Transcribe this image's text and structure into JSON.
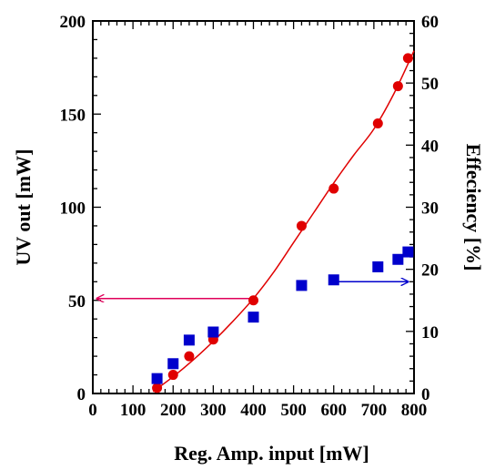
{
  "chart_data": {
    "type": "scatter",
    "title": "",
    "xlabel": "Reg. Amp. input [mW]",
    "ylabel": "UV out [mW]",
    "y2label": "Effeciency [%]",
    "xlim": [
      0,
      800
    ],
    "ylim": [
      0,
      200
    ],
    "y2lim": [
      0,
      60
    ],
    "xticks": [
      0,
      100,
      200,
      300,
      400,
      500,
      600,
      700,
      800
    ],
    "xtick_labels": [
      "0",
      "100",
      "200",
      "300",
      "400",
      "500",
      "600",
      "700",
      "800"
    ],
    "yticks": [
      0,
      50,
      100,
      150,
      200
    ],
    "ytick_labels": [
      "0",
      "50",
      "100",
      "150",
      "200"
    ],
    "y2ticks": [
      0,
      10,
      20,
      30,
      40,
      50,
      60
    ],
    "y2tick_labels": [
      "0",
      "10",
      "20",
      "30",
      "40",
      "50",
      "60"
    ],
    "grid": false,
    "series": [
      {
        "axis": "left",
        "marker": "circle",
        "color": "#e00000",
        "x": [
          160,
          200,
          240,
          300,
          400,
          520,
          600,
          710,
          760,
          785
        ],
        "y": [
          3,
          10,
          20,
          29,
          50,
          90,
          110,
          145,
          165,
          180
        ]
      },
      {
        "axis": "right",
        "marker": "square",
        "color": "#0000cc",
        "x": [
          160,
          200,
          240,
          300,
          400,
          520,
          600,
          710,
          760,
          785
        ],
        "y": [
          2.4,
          4.8,
          8.6,
          9.9,
          12.3,
          17.4,
          18.3,
          20.4,
          21.6,
          22.8
        ]
      }
    ],
    "fit_curve": {
      "axis": "left",
      "color": "#e00000",
      "x": [
        150,
        200,
        250,
        300,
        350,
        400,
        450,
        500,
        550,
        600,
        650,
        700,
        750,
        800
      ],
      "y": [
        1,
        9,
        18,
        28,
        39,
        51,
        65,
        81,
        97,
        113,
        128,
        142,
        161,
        184
      ]
    },
    "annotations": [
      {
        "type": "arrow",
        "color": "#e0005a",
        "axis": "left",
        "from": [
          395,
          51
        ],
        "to": [
          10,
          51
        ]
      },
      {
        "type": "arrow",
        "color": "#0000cc",
        "axis": "right",
        "from": [
          610,
          18
        ],
        "to": [
          785,
          18
        ]
      }
    ]
  }
}
